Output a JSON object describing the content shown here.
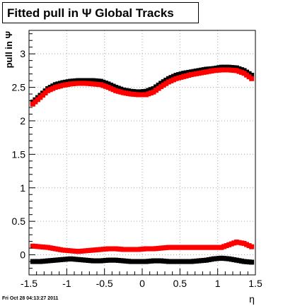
{
  "header": {
    "title": "Fitted pull in  Ψ   Global Tracks"
  },
  "footer": {
    "timestamp": "Fri Oct 28 04:13:27 2011"
  },
  "chart_data": {
    "type": "scatter",
    "title": "Fitted pull in  Ψ   Global Tracks",
    "xlabel": "η",
    "ylabel": "pull in Ψ",
    "xlim": [
      -1.5,
      1.5
    ],
    "ylim": [
      -0.3,
      3.35
    ],
    "grid": true,
    "xticks": [
      "-1.5",
      "-1",
      "-0.5",
      "0",
      "0.5",
      "1",
      "1.5"
    ],
    "xtick_values": [
      -1.5,
      -1,
      -0.5,
      0,
      0.5,
      1,
      1.5
    ],
    "yticks": [
      "0",
      "0.5",
      "1",
      "1.5",
      "2",
      "2.5",
      "3"
    ],
    "ytick_values": [
      0,
      0.5,
      1,
      1.5,
      2,
      2.5,
      3
    ],
    "series": [
      {
        "color": "#000000",
        "x": [
          -1.45,
          -1.35,
          -1.25,
          -1.15,
          -1.05,
          -0.95,
          -0.85,
          -0.75,
          -0.65,
          -0.55,
          -0.45,
          -0.35,
          -0.25,
          -0.15,
          -0.05,
          0.05,
          0.15,
          0.25,
          0.35,
          0.45,
          0.55,
          0.65,
          0.75,
          0.85,
          0.95,
          1.05,
          1.15,
          1.25,
          1.35,
          1.45
        ],
        "values": [
          2.28,
          2.38,
          2.48,
          2.54,
          2.57,
          2.59,
          2.6,
          2.6,
          2.6,
          2.59,
          2.55,
          2.5,
          2.46,
          2.44,
          2.43,
          2.44,
          2.48,
          2.56,
          2.63,
          2.68,
          2.71,
          2.73,
          2.75,
          2.77,
          2.78,
          2.8,
          2.8,
          2.79,
          2.75,
          2.68
        ]
      },
      {
        "color": "#ff0000",
        "x": [
          -1.45,
          -1.35,
          -1.25,
          -1.15,
          -1.05,
          -0.95,
          -0.85,
          -0.75,
          -0.65,
          -0.55,
          -0.45,
          -0.35,
          -0.25,
          -0.15,
          -0.05,
          0.05,
          0.15,
          0.25,
          0.35,
          0.45,
          0.55,
          0.65,
          0.75,
          0.85,
          0.95,
          1.05,
          1.15,
          1.25,
          1.35,
          1.45
        ],
        "values": [
          2.25,
          2.35,
          2.45,
          2.5,
          2.53,
          2.55,
          2.56,
          2.56,
          2.55,
          2.54,
          2.5,
          2.45,
          2.42,
          2.4,
          2.39,
          2.39,
          2.43,
          2.51,
          2.58,
          2.63,
          2.66,
          2.69,
          2.71,
          2.73,
          2.75,
          2.76,
          2.76,
          2.75,
          2.71,
          2.63
        ]
      },
      {
        "color": "#ff0000",
        "x": [
          -1.45,
          -1.35,
          -1.25,
          -1.15,
          -1.05,
          -0.95,
          -0.85,
          -0.75,
          -0.65,
          -0.55,
          -0.45,
          -0.35,
          -0.25,
          -0.15,
          -0.05,
          0.05,
          0.15,
          0.25,
          0.35,
          0.45,
          0.55,
          0.65,
          0.75,
          0.85,
          0.95,
          1.05,
          1.15,
          1.25,
          1.35,
          1.45
        ],
        "values": [
          0.13,
          0.12,
          0.11,
          0.09,
          0.07,
          0.06,
          0.05,
          0.06,
          0.07,
          0.08,
          0.09,
          0.09,
          0.08,
          0.08,
          0.08,
          0.09,
          0.09,
          0.1,
          0.11,
          0.11,
          0.11,
          0.11,
          0.11,
          0.11,
          0.11,
          0.11,
          0.15,
          0.19,
          0.17,
          0.12
        ]
      },
      {
        "color": "#000000",
        "x": [
          -1.45,
          -1.35,
          -1.25,
          -1.15,
          -1.05,
          -0.95,
          -0.85,
          -0.75,
          -0.65,
          -0.55,
          -0.45,
          -0.35,
          -0.25,
          -0.15,
          -0.05,
          0.05,
          0.15,
          0.25,
          0.35,
          0.45,
          0.55,
          0.65,
          0.75,
          0.85,
          0.95,
          1.05,
          1.15,
          1.25,
          1.35,
          1.45
        ],
        "values": [
          -0.1,
          -0.1,
          -0.09,
          -0.08,
          -0.07,
          -0.06,
          -0.07,
          -0.08,
          -0.09,
          -0.09,
          -0.08,
          -0.08,
          -0.09,
          -0.1,
          -0.1,
          -0.1,
          -0.09,
          -0.09,
          -0.1,
          -0.1,
          -0.1,
          -0.1,
          -0.09,
          -0.08,
          -0.06,
          -0.05,
          -0.06,
          -0.08,
          -0.1,
          -0.11
        ]
      }
    ]
  }
}
